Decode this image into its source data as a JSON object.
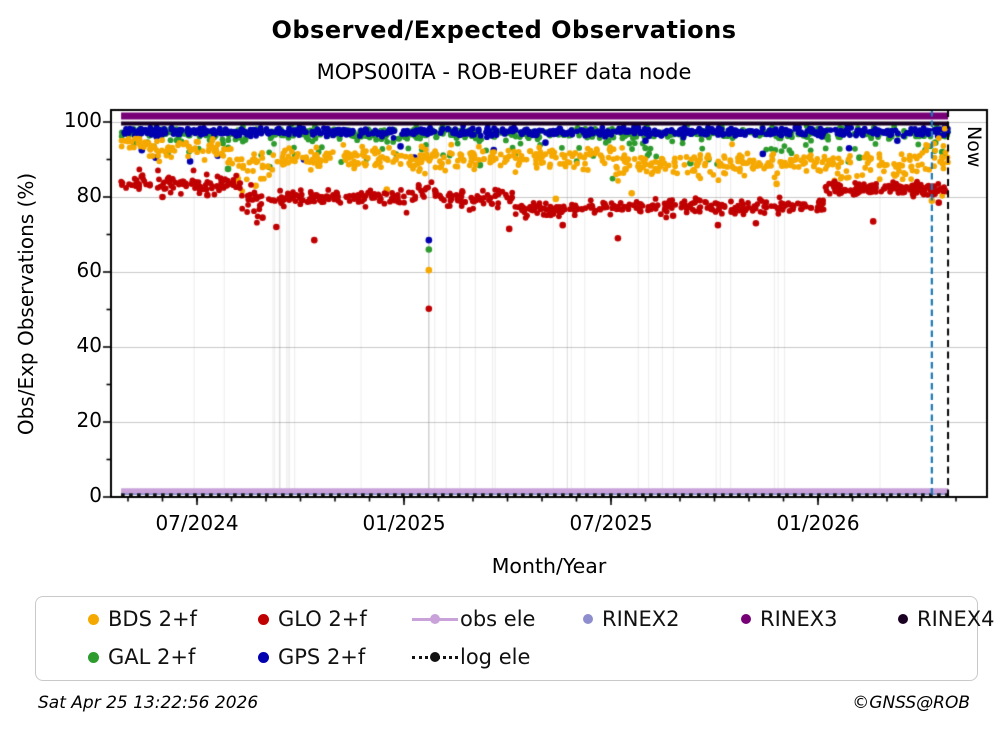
{
  "figure": {
    "title": "Observed/Expected Observations",
    "subtitle": "MOPS00ITA - ROB-EUREF data node",
    "footer_left": "Sat Apr 25 13:22:56 2026",
    "footer_right": "©GNSS@ROB",
    "now_label": "Now"
  },
  "colors": {
    "bds": "#F5A800",
    "glo": "#C00000",
    "gal": "#2E9B2E",
    "gps": "#0000B0",
    "obs_ele": "#C9A2DA",
    "log_ele": "#111111",
    "rinex2": "#8E8ECE",
    "rinex3": "#770077",
    "rinex4": "#1A0022",
    "now_blue": "#1F77B4",
    "now_black": "#000000",
    "grid": "#C8C8C8",
    "hairline": "rgba(120,120,120,0.14)",
    "event_line": "rgba(150,150,150,0.55)"
  },
  "chart_data": {
    "type": "scatter",
    "title": "Observed/Expected Observations",
    "subtitle": "MOPS00ITA - ROB-EUREF data node",
    "xlabel": "Month/Year",
    "ylabel": "Obs/Exp Observations (%)",
    "ylim": [
      -2.8,
      103.2
    ],
    "grid": "horizontal-major",
    "time_unit": "months since 2024-07-01; x axis spans ~2024-04 to ~2026-05",
    "x_major_ticks": [
      {
        "label": "07/2024",
        "t": 0
      },
      {
        "label": "01/2025",
        "t": 6
      },
      {
        "label": "07/2025",
        "t": 12
      },
      {
        "label": "01/2026",
        "t": 18
      }
    ],
    "x_minor_tick_t": [
      -2,
      -1,
      0,
      1,
      2,
      3,
      4,
      5,
      6,
      7,
      8,
      9,
      10,
      11,
      12,
      13,
      14,
      15,
      16,
      17,
      18,
      19,
      20,
      21,
      22
    ],
    "y_major_ticks": [
      0,
      20,
      40,
      60,
      80,
      100
    ],
    "y_minor_ticks": [
      10,
      30,
      50,
      70,
      90
    ],
    "data_end_t": 21.77,
    "last_data_line_t": 21.3,
    "now_line_t": 21.77,
    "event_dip_t": 6.72,
    "hairline_count": 34,
    "series": [
      {
        "name": "GAL 2+f",
        "key": "gal",
        "kind": "scatter",
        "r": 2.9,
        "segments": [
          [
            -2.2,
            21.77,
            97.0,
            0.7,
            20
          ],
          [
            -2.2,
            21.77,
            93.3,
            2.0,
            4.5
          ]
        ],
        "outliers": [
          [
            6.72,
            66
          ],
          [
            0.9,
            87.5
          ],
          [
            14.3,
            89
          ],
          [
            2.1,
            88
          ],
          [
            19.2,
            90.5
          ],
          [
            21.4,
            94.5
          ],
          [
            21.6,
            92
          ],
          [
            8.2,
            88.5
          ]
        ]
      },
      {
        "name": "GPS 2+f",
        "key": "gps",
        "kind": "scatter",
        "r": 2.9,
        "segments": [
          [
            -2.2,
            21.77,
            97.4,
            0.55,
            30
          ]
        ],
        "outliers": [
          [
            6.72,
            68.5
          ],
          [
            -1.6,
            92.5
          ],
          [
            -1.2,
            90.5
          ],
          [
            0.6,
            91
          ],
          [
            3.1,
            90
          ],
          [
            5.9,
            93.5
          ],
          [
            8.6,
            92.5
          ],
          [
            13.0,
            95
          ],
          [
            16.4,
            91.5
          ],
          [
            18.9,
            93
          ],
          [
            -0.2,
            89.5
          ],
          [
            6.3,
            90.5
          ],
          [
            10.1,
            94.5
          ],
          [
            20.3,
            95
          ]
        ]
      },
      {
        "name": "BDS 2+f",
        "key": "bds",
        "kind": "scatter",
        "r": 2.9,
        "segments": [
          [
            -2.2,
            -1.4,
            94.3,
            1.0,
            26
          ],
          [
            -1.4,
            1.0,
            92.3,
            1.5,
            26
          ],
          [
            1.0,
            2.2,
            88.2,
            2.0,
            26
          ],
          [
            2.2,
            6.35,
            90.6,
            1.6,
            26
          ],
          [
            6.35,
            12.0,
            90.2,
            1.6,
            26
          ],
          [
            12.0,
            18.0,
            88.6,
            1.7,
            26
          ],
          [
            18.0,
            20.8,
            88.2,
            1.8,
            26
          ],
          [
            20.8,
            21.77,
            90.5,
            3.0,
            30
          ]
        ],
        "outliers": [
          [
            6.72,
            60.5
          ],
          [
            10.4,
            79.5
          ],
          [
            5.5,
            82
          ],
          [
            1.7,
            83
          ],
          [
            20.6,
            82.5
          ],
          [
            21.3,
            79
          ],
          [
            12.6,
            81
          ],
          [
            16.8,
            83.5
          ]
        ]
      },
      {
        "name": "GLO 2+f",
        "key": "glo",
        "kind": "scatter",
        "r": 2.9,
        "segments": [
          [
            -2.2,
            1.3,
            83.6,
            1.1,
            28
          ],
          [
            1.3,
            2.1,
            79.0,
            2.2,
            28
          ],
          [
            2.1,
            6.4,
            79.8,
            1.0,
            28
          ],
          [
            6.4,
            7.0,
            81.8,
            1.4,
            26
          ],
          [
            7.0,
            9.2,
            79.4,
            1.1,
            28
          ],
          [
            9.2,
            12.5,
            76.8,
            0.9,
            28
          ],
          [
            12.5,
            18.2,
            77.4,
            0.9,
            28
          ],
          [
            18.2,
            21.77,
            82.2,
            0.9,
            40
          ]
        ],
        "outliers": [
          [
            6.72,
            50.2
          ],
          [
            3.4,
            68.5
          ],
          [
            2.3,
            72
          ],
          [
            9.05,
            71.5
          ],
          [
            12.2,
            69
          ],
          [
            15.1,
            72.5
          ],
          [
            16.2,
            73
          ],
          [
            19.6,
            73.5
          ],
          [
            1.9,
            74.5
          ],
          [
            10.6,
            72.5
          ],
          [
            13.8,
            75
          ],
          [
            21.5,
            78.5
          ],
          [
            0.3,
            80.5
          ],
          [
            -1.0,
            80
          ]
        ]
      },
      {
        "name": "RINEX3",
        "key": "rinex3",
        "kind": "hline",
        "value": 101.6,
        "lw": 7,
        "t0": -2.2,
        "t1": 21.77
      },
      {
        "name": "RINEX4",
        "key": "rinex4",
        "kind": "hline",
        "value": 99.6,
        "lw": 4,
        "t0": -2.2,
        "t1": 21.77
      },
      {
        "name": "RINEX2",
        "key": "rinex2",
        "kind": "hline",
        "value": 0.9,
        "lw": 2.5,
        "t0": -2.2,
        "t1": 21.77
      },
      {
        "name": "obs ele",
        "key": "obs_ele",
        "kind": "hline",
        "value": 1.7,
        "lw": 5,
        "t0": -2.2,
        "t1": 21.77
      },
      {
        "name": "log ele",
        "key": "log_ele",
        "kind": "dotline",
        "value": 0.5,
        "t0": -2.2,
        "t1": 21.77
      }
    ],
    "vlines": [
      {
        "key": "now_blue",
        "t": 21.3,
        "dash": [
          6.5,
          4
        ],
        "lw": 2.2
      },
      {
        "key": "now_black",
        "t": 21.77,
        "dash": [
          7,
          4.5
        ],
        "lw": 2
      }
    ]
  },
  "legend": {
    "rows": [
      {
        "items": [
          {
            "label": "BDS 2+f",
            "key": "bds",
            "marker": "dot"
          },
          {
            "label": "GLO 2+f",
            "key": "glo",
            "marker": "dot"
          },
          {
            "label": "obs ele",
            "key": "obs_ele",
            "marker": "line-dot"
          },
          {
            "label": "RINEX2",
            "key": "rinex2",
            "marker": "dot-small"
          },
          {
            "label": "RINEX3",
            "key": "rinex3",
            "marker": "dot-small"
          },
          {
            "label": "RINEX4",
            "key": "rinex4",
            "marker": "dot-small"
          }
        ]
      },
      {
        "items": [
          {
            "label": "GAL 2+f",
            "key": "gal",
            "marker": "dot"
          },
          {
            "label": "GPS 2+f",
            "key": "gps",
            "marker": "dot"
          },
          {
            "label": "log ele",
            "key": "log_ele",
            "marker": "dotted-line-dot"
          }
        ]
      }
    ]
  }
}
